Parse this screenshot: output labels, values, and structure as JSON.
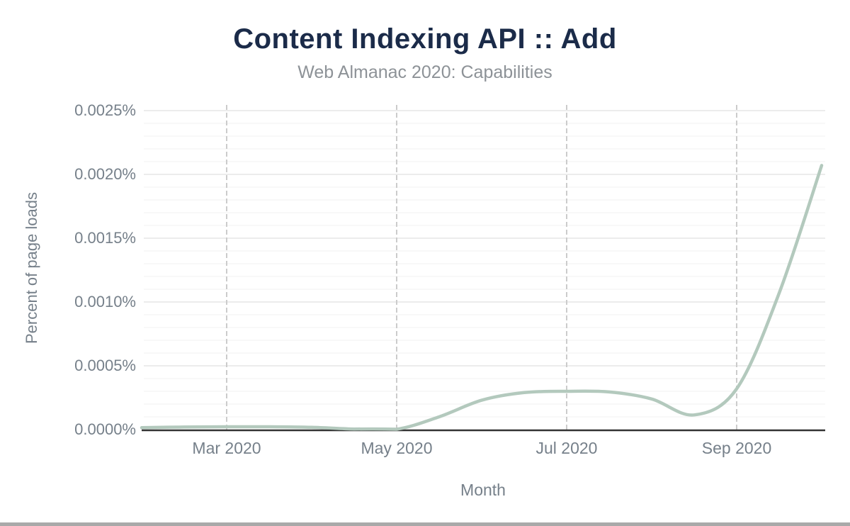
{
  "header": {
    "title": "Content Indexing API :: Add",
    "subtitle": "Web Almanac 2020: Capabilities"
  },
  "colors": {
    "title": "#1b2b49",
    "subtitle": "#8d9297",
    "axis_text": "#76808a",
    "line": "#b3c9bd",
    "axis_line": "#333333",
    "vertical_grid": "#cccccc",
    "major_grid": "#ececec",
    "minor_grid": "#f6f6f6",
    "scrollbar": "#a9a9a9",
    "background": "#ffffff"
  },
  "chart_data": {
    "type": "line",
    "title": "Content Indexing API :: Add",
    "subtitle": "Web Almanac 2020: Capabilities",
    "xlabel": "Month",
    "ylabel": "Percent of page loads",
    "smooth": true,
    "grid": true,
    "legend": "none",
    "ylim": [
      0,
      0.0025
    ],
    "y_ticks": [
      {
        "label": "0.0000%",
        "value": 0.0
      },
      {
        "label": "0.0005%",
        "value": 0.0005
      },
      {
        "label": "0.0010%",
        "value": 0.001
      },
      {
        "label": "0.0015%",
        "value": 0.0015
      },
      {
        "label": "0.0020%",
        "value": 0.002
      },
      {
        "label": "0.0025%",
        "value": 0.0025
      }
    ],
    "minor_grid_step": 0.0001,
    "x_dates": [
      "2020-02-01",
      "2020-02-15",
      "2020-03-01",
      "2020-03-15",
      "2020-04-01",
      "2020-04-15",
      "2020-05-01",
      "2020-05-15",
      "2020-06-01",
      "2020-06-15",
      "2020-07-01",
      "2020-07-15",
      "2020-08-01",
      "2020-08-15",
      "2020-09-01",
      "2020-09-15",
      "2020-10-01"
    ],
    "x_ticks": [
      {
        "label": "Mar 2020",
        "date": "2020-03-01"
      },
      {
        "label": "May 2020",
        "date": "2020-05-01"
      },
      {
        "label": "Jul 2020",
        "date": "2020-07-01"
      },
      {
        "label": "Sep 2020",
        "date": "2020-09-01"
      }
    ],
    "series": [
      {
        "name": "Content Indexing API :: Add",
        "unit": "percent of page loads",
        "values": [
          1.5e-05,
          2e-05,
          2.2e-05,
          2.2e-05,
          1.8e-05,
          4e-06,
          1e-06,
          0.0001,
          0.00023,
          0.00029,
          0.0003,
          0.000295,
          0.00024,
          0.000115,
          0.00032,
          0.00107,
          0.00207
        ]
      }
    ]
  }
}
